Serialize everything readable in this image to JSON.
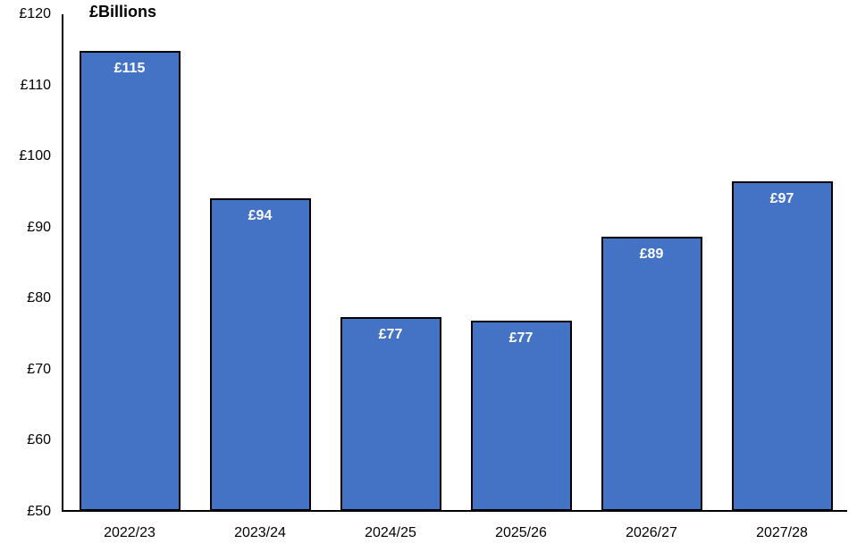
{
  "chart_data": {
    "type": "bar",
    "title": "£Billions",
    "categories": [
      "2022/23",
      "2023/24",
      "2024/25",
      "2025/26",
      "2026/27",
      "2027/28"
    ],
    "values": [
      115,
      94,
      77,
      77,
      89,
      97
    ],
    "bar_labels": [
      "£115",
      "£94",
      "£77",
      "£77",
      "£89",
      "£97"
    ],
    "plot_values": [
      114.8,
      94.1,
      77.4,
      76.9,
      88.7,
      96.5
    ],
    "xlabel": "",
    "ylabel": "£Billions",
    "ylim": [
      50,
      120
    ],
    "y_ticks": [
      120,
      110,
      100,
      90,
      80,
      70,
      60,
      50
    ],
    "y_tick_labels": [
      "£120",
      "£110",
      "£100",
      "£90",
      "£80",
      "£70",
      "£60",
      "£50"
    ],
    "grid": false,
    "legend": "none",
    "colors": {
      "bar_fill": "#4472C4",
      "bar_border": "#000000",
      "bar_label_text": "#FFFFFF",
      "axis_line": "#000000",
      "text": "#000000",
      "background": "#FFFFFF"
    }
  }
}
